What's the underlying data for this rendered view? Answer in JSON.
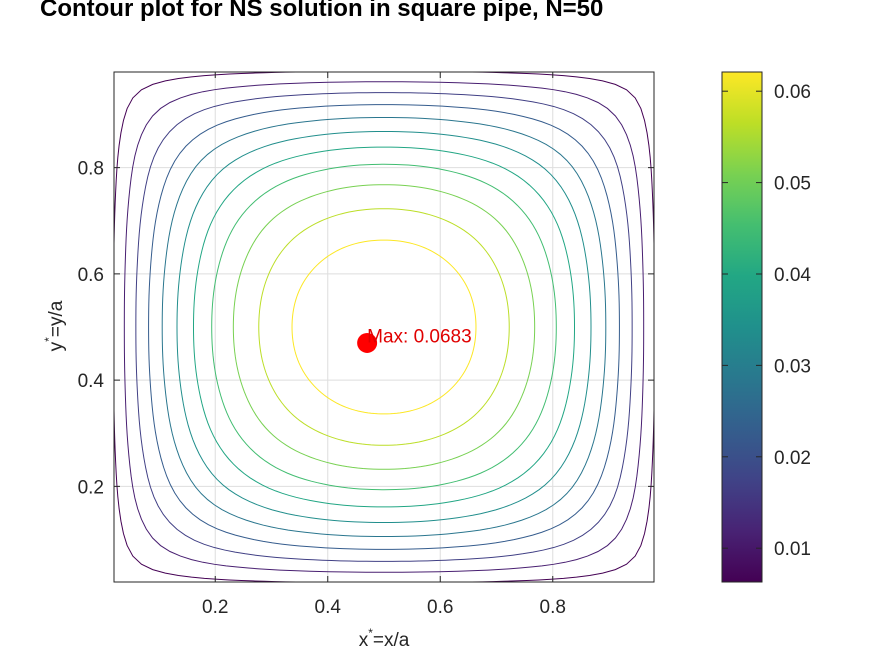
{
  "chart_data": {
    "type": "contour",
    "title": "Contour plot for NS solution in square pipe, N=50",
    "xlabel": {
      "base": "x",
      "sup": "*",
      "rest": "=x/a"
    },
    "ylabel": {
      "base": "y",
      "sup": "*",
      "rest": "=y/a"
    },
    "xlim": [
      0.02,
      0.98
    ],
    "ylim": [
      0.02,
      0.98
    ],
    "x_ticks": [
      0.2,
      0.4,
      0.6,
      0.8
    ],
    "y_ticks": [
      0.2,
      0.4,
      0.6,
      0.8
    ],
    "x_tick_labels": [
      "0.2",
      "0.4",
      "0.6",
      "0.8"
    ],
    "y_tick_labels": [
      "0.2",
      "0.4",
      "0.6",
      "0.8"
    ],
    "grid": true,
    "colormap": "viridis",
    "contour_levels": [
      0.0056,
      0.0113,
      0.0169,
      0.0226,
      0.0282,
      0.0338,
      0.0395,
      0.0451,
      0.0508,
      0.0564,
      0.062
    ],
    "colorbar": {
      "range": [
        0.0063,
        0.0621
      ],
      "ticks": [
        0.01,
        0.02,
        0.03,
        0.04,
        0.05,
        0.06
      ],
      "tick_labels": [
        "0.01",
        "0.02",
        "0.03",
        "0.04",
        "0.05",
        "0.06"
      ]
    },
    "max_marker": {
      "x": 0.47,
      "y": 0.47,
      "label": "Max: 0.0683",
      "color": "#ff0000"
    }
  }
}
